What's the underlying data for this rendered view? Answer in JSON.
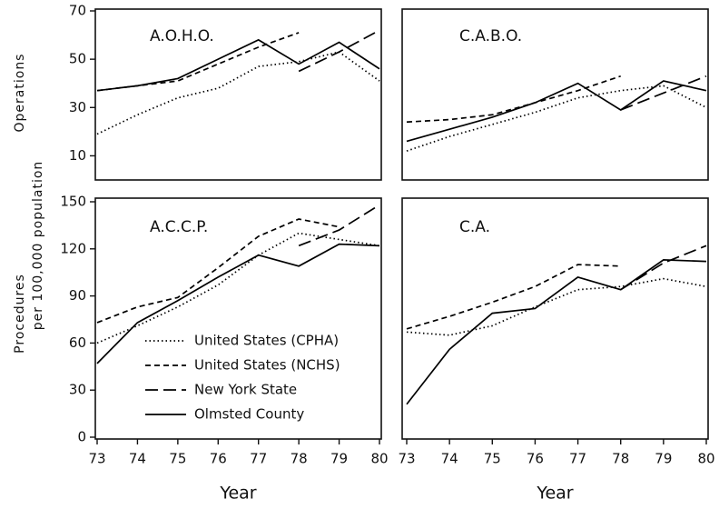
{
  "axis_labels": {
    "top": "Operations",
    "bottom": "Procedures",
    "shared": "per 100,000 population"
  },
  "chart_data": [
    {
      "type": "line",
      "title": "A.O.H.O.",
      "x": [
        73,
        74,
        75,
        76,
        77,
        78,
        79,
        80
      ],
      "xlim": [
        73,
        80
      ],
      "ylim": [
        0,
        70
      ],
      "yticks": [
        10,
        30,
        50,
        70
      ],
      "series": [
        {
          "name": "United States (CPHA)",
          "color": "#000000",
          "dash": "dotted",
          "values": [
            19,
            27,
            34,
            38,
            47,
            49,
            53,
            41
          ]
        },
        {
          "name": "United States (NCHS)",
          "color": "#000000",
          "dash": "dashed",
          "values": [
            37,
            39,
            41,
            48,
            55,
            61,
            null,
            null
          ]
        },
        {
          "name": "New York State",
          "color": "#000000",
          "dash": "longdash",
          "values": [
            null,
            null,
            null,
            null,
            null,
            45,
            53,
            62
          ]
        },
        {
          "name": "Olmsted County",
          "color": "#000000",
          "dash": "solid",
          "values": [
            37,
            39,
            42,
            50,
            58,
            48,
            57,
            46
          ]
        }
      ]
    },
    {
      "type": "line",
      "title": "C.A.B.O.",
      "x": [
        73,
        74,
        75,
        76,
        77,
        78,
        79,
        80
      ],
      "xlim": [
        73,
        80
      ],
      "ylim": [
        0,
        70
      ],
      "series": [
        {
          "name": "United States (CPHA)",
          "color": "#000000",
          "dash": "dotted",
          "values": [
            12,
            18,
            23,
            28,
            34,
            37,
            39,
            30
          ]
        },
        {
          "name": "United States (NCHS)",
          "color": "#000000",
          "dash": "dashed",
          "values": [
            24,
            25,
            27,
            32,
            37,
            43,
            null,
            null
          ]
        },
        {
          "name": "New York State",
          "color": "#000000",
          "dash": "longdash",
          "values": [
            null,
            null,
            null,
            null,
            null,
            29,
            36,
            43
          ]
        },
        {
          "name": "Olmsted County",
          "color": "#000000",
          "dash": "solid",
          "values": [
            16,
            21,
            26,
            32,
            40,
            29,
            41,
            37
          ]
        }
      ]
    },
    {
      "type": "line",
      "title": "A.C.C.P.",
      "x": [
        73,
        74,
        75,
        76,
        77,
        78,
        79,
        80
      ],
      "xlim": [
        73,
        80
      ],
      "xticks": [
        73,
        74,
        75,
        76,
        77,
        78,
        79,
        80
      ],
      "xlabel": "Year",
      "ylim": [
        0,
        150
      ],
      "yticks": [
        0,
        30,
        60,
        90,
        120,
        150
      ],
      "legend": "lower center",
      "series": [
        {
          "name": "United States (CPHA)",
          "color": "#000000",
          "dash": "dotted",
          "values": [
            60,
            71,
            83,
            97,
            116,
            130,
            126,
            122
          ]
        },
        {
          "name": "United States (NCHS)",
          "color": "#000000",
          "dash": "dashed",
          "values": [
            73,
            83,
            89,
            108,
            128,
            139,
            134,
            null
          ]
        },
        {
          "name": "New York State",
          "color": "#000000",
          "dash": "longdash",
          "values": [
            null,
            null,
            null,
            null,
            null,
            122,
            132,
            148
          ]
        },
        {
          "name": "Olmsted County",
          "color": "#000000",
          "dash": "solid",
          "values": [
            47,
            73,
            87,
            102,
            116,
            109,
            123,
            122
          ]
        }
      ]
    },
    {
      "type": "line",
      "title": "C.A.",
      "x": [
        73,
        74,
        75,
        76,
        77,
        78,
        79,
        80
      ],
      "xlim": [
        73,
        80
      ],
      "xticks": [
        73,
        74,
        75,
        76,
        77,
        78,
        79,
        80
      ],
      "xlabel": "Year",
      "ylim": [
        0,
        150
      ],
      "series": [
        {
          "name": "United States (CPHA)",
          "color": "#000000",
          "dash": "dotted",
          "values": [
            67,
            65,
            71,
            83,
            94,
            96,
            101,
            96
          ]
        },
        {
          "name": "United States (NCHS)",
          "color": "#000000",
          "dash": "dashed",
          "values": [
            69,
            77,
            86,
            96,
            110,
            109,
            null,
            null
          ]
        },
        {
          "name": "New York State",
          "color": "#000000",
          "dash": "longdash",
          "values": [
            null,
            null,
            null,
            null,
            null,
            94,
            111,
            122
          ]
        },
        {
          "name": "Olmsted County",
          "color": "#000000",
          "dash": "solid",
          "values": [
            21,
            56,
            79,
            82,
            102,
            94,
            113,
            112
          ]
        }
      ]
    }
  ]
}
